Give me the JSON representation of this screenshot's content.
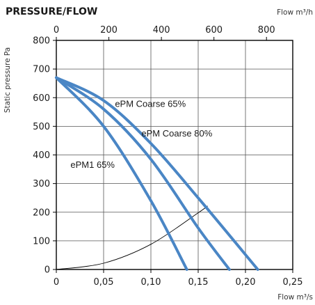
{
  "chart_data": {
    "type": "line",
    "title": "PRESSURE/FLOW",
    "ylabel": "Static pressure Pa",
    "xlabel_bottom": "Flow m³/s",
    "xlabel_top": "Flow m³/h",
    "x_ticks_bottom": [
      "0",
      "0,05",
      "0,10",
      "0,15",
      "0,20",
      "0,25"
    ],
    "x_ticks_top": [
      "0",
      "200",
      "400",
      "600",
      "800"
    ],
    "y_ticks": [
      "0",
      "100",
      "200",
      "300",
      "400",
      "500",
      "600",
      "700",
      "800"
    ],
    "xlim": [
      0,
      0.25
    ],
    "xlim_top": [
      0,
      900
    ],
    "ylim": [
      0,
      800
    ],
    "grid": true,
    "series": [
      {
        "name": "ePM Coarse 65%",
        "color": "#4a86c5",
        "labelAt": [
          0.062,
          568
        ],
        "x": [
          0,
          0.05,
          0.1,
          0.15,
          0.213
        ],
        "y": [
          670,
          590,
          440,
          250,
          0
        ]
      },
      {
        "name": "ePM Coarse 80%",
        "color": "#4a86c5",
        "labelAt": [
          0.09,
          465
        ],
        "x": [
          0,
          0.05,
          0.1,
          0.15,
          0.183
        ],
        "y": [
          670,
          560,
          385,
          145,
          0
        ]
      },
      {
        "name": "ePM1 65%",
        "color": "#4a86c5",
        "labelAt": [
          0.015,
          355
        ],
        "x": [
          0,
          0.05,
          0.1,
          0.138
        ],
        "y": [
          670,
          500,
          240,
          0
        ]
      }
    ],
    "system_curve": {
      "color": "#000000",
      "x": [
        0,
        0.05,
        0.1,
        0.15,
        0.16
      ],
      "y": [
        0,
        22,
        88,
        198,
        222
      ]
    }
  }
}
